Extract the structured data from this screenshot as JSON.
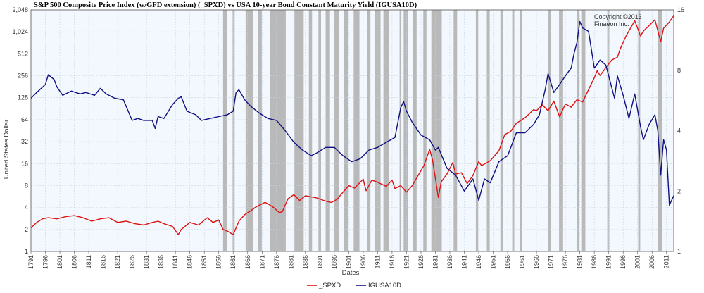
{
  "chart_data": {
    "type": "line",
    "title": "S&P 500 Composite Price Index (w/GFD extension) (_SPXD)  vs  USA 10-year Bond Constant Maturity Yield (IGUSA10D)",
    "xlabel": "Dates",
    "ylabel": "United States Dollar",
    "y2label": "",
    "copyright_line1": "Copyright ©2013",
    "copyright_line2": "Finaeon Inc.",
    "xlim": [
      1791,
      2013.5
    ],
    "ylim": [
      1,
      2048
    ],
    "ylim_right": [
      1,
      16
    ],
    "yscale": "log2",
    "y2scale": "log2",
    "grid": true,
    "legend_position": "bottom-center",
    "x_ticks": [
      "1791",
      "1796",
      "1801",
      "1806",
      "1811",
      "1816",
      "1821",
      "1826",
      "1831",
      "1836",
      "1841",
      "1846",
      "1851",
      "1856",
      "1861",
      "1866",
      "1871",
      "1876",
      "1881",
      "1886",
      "1891",
      "1896",
      "1901",
      "1906",
      "1911",
      "1916",
      "1921",
      "1926",
      "1931",
      "1936",
      "1941",
      "1946",
      "1951",
      "1956",
      "1961",
      "1966",
      "1971",
      "1976",
      "1981",
      "1986",
      "1991",
      "1996",
      "2001",
      "2006",
      "2011"
    ],
    "y_ticks": [
      "1",
      "2",
      "4",
      "8",
      "16",
      "32",
      "64",
      "128",
      "256",
      "512",
      "1,024",
      "2,048"
    ],
    "y2_ticks": [
      "1",
      "2",
      "4",
      "8",
      "16"
    ],
    "recessions": [
      [
        1857.5,
        1858.9
      ],
      [
        1860.8,
        1861.5
      ],
      [
        1865.3,
        1867.9
      ],
      [
        1869.5,
        1870.9
      ],
      [
        1873.8,
        1879.2
      ],
      [
        1882.2,
        1885.4
      ],
      [
        1887.2,
        1888.3
      ],
      [
        1890.5,
        1891.4
      ],
      [
        1893.0,
        1894.5
      ],
      [
        1895.9,
        1897.5
      ],
      [
        1899.4,
        1900.9
      ],
      [
        1902.7,
        1904.7
      ],
      [
        1907.3,
        1908.5
      ],
      [
        1910.0,
        1912.0
      ],
      [
        1913.0,
        1914.9
      ],
      [
        1918.6,
        1919.2
      ],
      [
        1920.0,
        1921.6
      ],
      [
        1923.3,
        1924.5
      ],
      [
        1926.8,
        1927.9
      ],
      [
        1929.6,
        1933.2
      ],
      [
        1937.3,
        1938.5
      ],
      [
        1945.0,
        1945.8
      ],
      [
        1948.8,
        1949.8
      ],
      [
        1953.5,
        1954.4
      ],
      [
        1957.6,
        1958.3
      ],
      [
        1960.3,
        1961.1
      ],
      [
        1969.9,
        1970.9
      ],
      [
        1973.8,
        1975.2
      ],
      [
        1980.0,
        1980.6
      ],
      [
        1981.5,
        1982.9
      ],
      [
        1990.5,
        1991.2
      ],
      [
        2001.2,
        2001.9
      ],
      [
        2007.9,
        2009.5
      ]
    ],
    "series": [
      {
        "name": "_SPXD",
        "color": "#dd1111",
        "axis": "left",
        "x": [
          1791,
          1793,
          1795,
          1797,
          1800,
          1803,
          1806,
          1809,
          1812,
          1815,
          1818,
          1821,
          1824,
          1827,
          1830,
          1833,
          1835,
          1837,
          1840,
          1842,
          1843,
          1846,
          1849,
          1852,
          1854,
          1856,
          1857.5,
          1859,
          1861,
          1863,
          1865,
          1867,
          1869,
          1872,
          1873,
          1875,
          1877,
          1878,
          1880,
          1882,
          1884,
          1886,
          1888,
          1890,
          1893,
          1895,
          1897,
          1899,
          1901,
          1903,
          1906,
          1907,
          1909,
          1911,
          1914,
          1916,
          1917,
          1919,
          1921,
          1923,
          1925,
          1927,
          1929,
          1930,
          1931,
          1932,
          1933,
          1935,
          1937,
          1938,
          1940,
          1942,
          1944,
          1946,
          1947,
          1950,
          1953,
          1955,
          1957,
          1959,
          1962,
          1965,
          1966,
          1968,
          1970,
          1972,
          1974,
          1976,
          1978,
          1980,
          1982,
          1984,
          1986,
          1987,
          1988,
          1990,
          1992,
          1994,
          1995,
          1997,
          2000,
          2001,
          2002,
          2003,
          2005,
          2007,
          2009,
          2010,
          2012,
          2013.5
        ],
        "y": [
          2.1,
          2.5,
          2.8,
          2.9,
          2.8,
          3.0,
          3.1,
          2.9,
          2.6,
          2.8,
          2.9,
          2.5,
          2.6,
          2.4,
          2.3,
          2.5,
          2.6,
          2.4,
          2.2,
          1.7,
          2.0,
          2.5,
          2.3,
          2.9,
          2.5,
          2.7,
          2.0,
          1.9,
          1.7,
          2.6,
          3.2,
          3.6,
          4.1,
          4.7,
          4.5,
          4.0,
          3.4,
          3.5,
          5.3,
          6.0,
          5.0,
          5.8,
          5.6,
          5.4,
          4.9,
          4.7,
          5.2,
          6.5,
          8.0,
          7.4,
          9.8,
          6.8,
          9.5,
          8.9,
          7.8,
          9.5,
          7.3,
          8.0,
          6.5,
          8.0,
          11.0,
          15.0,
          25.0,
          18.0,
          10.0,
          5.5,
          9.0,
          11.5,
          16.5,
          11.5,
          12.0,
          8.5,
          11.0,
          17.0,
          15.0,
          17.5,
          24.0,
          40.0,
          44.0,
          57.0,
          68.0,
          88.0,
          85.0,
          102.0,
          85.0,
          115.0,
          70.0,
          105.0,
          95.0,
          120.0,
          112.0,
          165.0,
          240.0,
          300.0,
          258.0,
          330.0,
          420.0,
          460.0,
          600.0,
          900.0,
          1450.0,
          1150.0,
          900.0,
          1050.0,
          1250.0,
          1500.0,
          750.0,
          1150.0,
          1400.0,
          1700.0
        ]
      },
      {
        "name": "IGUSA10D",
        "color": "#101080",
        "axis": "right",
        "x": [
          1791,
          1793,
          1796,
          1797,
          1799,
          1800,
          1802,
          1805,
          1808,
          1810,
          1813,
          1815,
          1817,
          1820,
          1823,
          1826,
          1828,
          1830,
          1833,
          1834,
          1835,
          1837,
          1840,
          1842,
          1843,
          1845,
          1848,
          1850,
          1853,
          1856,
          1859,
          1861,
          1862,
          1863,
          1865,
          1867,
          1870,
          1873,
          1876,
          1879,
          1882,
          1885,
          1888,
          1890,
          1893,
          1896,
          1899,
          1902,
          1905,
          1908,
          1911,
          1914,
          1917,
          1919,
          1920,
          1921,
          1923,
          1926,
          1929,
          1931,
          1932,
          1935,
          1938,
          1941,
          1944,
          1946,
          1948,
          1950,
          1953,
          1956,
          1959,
          1962,
          1965,
          1967,
          1969,
          1970,
          1972,
          1974,
          1976,
          1978,
          1979,
          1980,
          1981,
          1982,
          1984,
          1986,
          1988,
          1990,
          1993,
          1994,
          1996,
          1998,
          2000,
          2002,
          2003,
          2005,
          2007,
          2008,
          2009,
          2010,
          2011,
          2012,
          2013.5
        ],
        "y": [
          5.8,
          6.2,
          6.8,
          7.6,
          7.2,
          6.6,
          6.0,
          6.3,
          6.1,
          6.2,
          6.0,
          6.5,
          6.1,
          5.8,
          5.7,
          4.5,
          4.6,
          4.5,
          4.5,
          4.1,
          4.7,
          4.6,
          5.4,
          5.8,
          5.9,
          5.0,
          4.8,
          4.5,
          4.6,
          4.7,
          4.8,
          5.0,
          6.2,
          6.4,
          5.7,
          5.3,
          4.9,
          4.6,
          4.5,
          4.0,
          3.5,
          3.2,
          3.0,
          3.1,
          3.3,
          3.3,
          3.0,
          2.8,
          2.9,
          3.2,
          3.3,
          3.5,
          3.7,
          5.2,
          5.6,
          5.0,
          4.4,
          3.8,
          3.6,
          3.2,
          3.3,
          2.6,
          2.4,
          2.0,
          2.3,
          1.8,
          2.3,
          2.2,
          2.8,
          3.0,
          3.9,
          3.9,
          4.3,
          4.8,
          6.4,
          7.7,
          6.2,
          6.8,
          7.5,
          8.2,
          9.7,
          11.0,
          14.0,
          13.0,
          12.5,
          8.2,
          9.0,
          8.5,
          5.8,
          7.5,
          6.0,
          4.6,
          6.1,
          4.2,
          3.6,
          4.3,
          4.8,
          4.0,
          2.4,
          3.6,
          3.2,
          1.7,
          1.9
        ]
      }
    ]
  }
}
